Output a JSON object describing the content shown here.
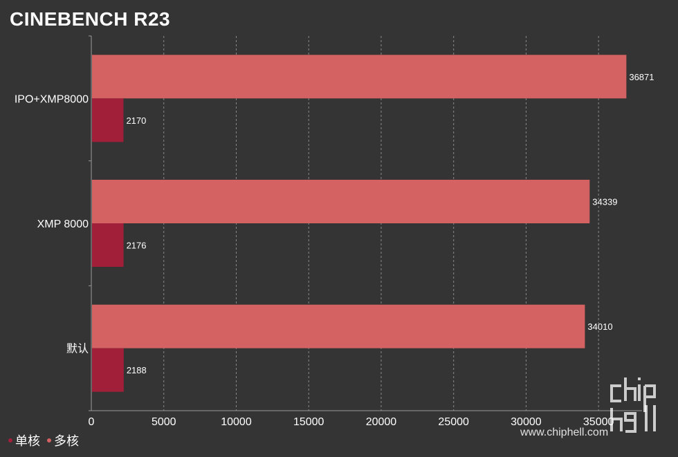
{
  "chart_data": {
    "type": "bar",
    "orientation": "horizontal",
    "title": "CINEBENCH R23",
    "categories": [
      "IPO+XMP8000",
      "XMP 8000",
      "默认"
    ],
    "series": [
      {
        "name": "多核",
        "values": [
          36871,
          34339,
          34010
        ],
        "color": "#d46262"
      },
      {
        "name": "单核",
        "values": [
          2170,
          2176,
          2188
        ],
        "color": "#a21f3a"
      }
    ],
    "xlim": [
      0,
      38000
    ],
    "xticks": [
      0,
      5000,
      10000,
      15000,
      20000,
      25000,
      30000,
      35000
    ],
    "grid": "vertical dashed",
    "legend_position": "bottom-left"
  },
  "legend": {
    "items": [
      {
        "label": "单核",
        "color": "#a21f3a"
      },
      {
        "label": "多核",
        "color": "#d46262"
      }
    ]
  },
  "watermark": {
    "logo_text": "chip hell",
    "url": "www.chiphell.com"
  },
  "colors": {
    "background": "#343434",
    "axis": "#9a9a9a",
    "grid": "#8a8a8a"
  }
}
